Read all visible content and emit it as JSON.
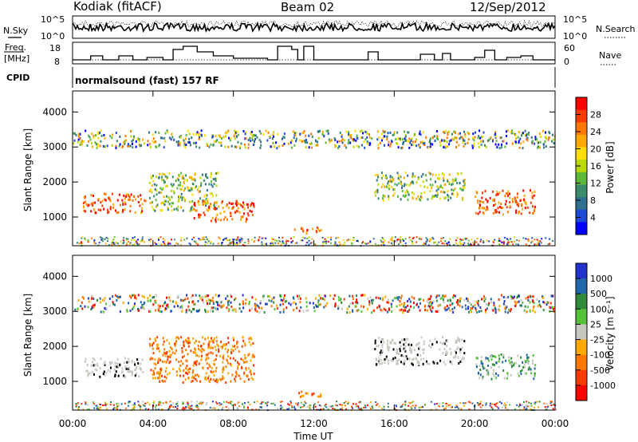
{
  "header": {
    "station": "Kodiak (fitACF)",
    "beam": "Beam 02",
    "date": "12/Sep/2012"
  },
  "noise_panel": {
    "left_label": "N.Sky",
    "right_label": "N.Search",
    "ticks_left": [
      "10^5",
      "10^0"
    ],
    "ticks_right": [
      "10^5",
      "10^0"
    ]
  },
  "freq_panel": {
    "left_label_1": "Freq.",
    "left_label_2": "[MHz]",
    "right_label": "Nave",
    "ticks_left": [
      "18",
      "8"
    ],
    "ticks_right": [
      "60",
      "0"
    ]
  },
  "cpid_panel": {
    "left_label": "CPID",
    "mode": "normalsound (fast) 157 RF"
  },
  "axes": {
    "ylabel": "Slant Range [km]",
    "xlabel": "Time UT",
    "yticks": [
      "4000",
      "3000",
      "2000",
      "1000"
    ],
    "xticks": [
      "00:00",
      "04:00",
      "08:00",
      "12:00",
      "16:00",
      "20:00",
      "00:00"
    ]
  },
  "power_colorbar": {
    "label": "Power [dB]",
    "ticks": [
      "28",
      "24",
      "20",
      "16",
      "12",
      "8",
      "4"
    ],
    "colors": [
      "#ff0000",
      "#ff3a00",
      "#ff7800",
      "#ffaa00",
      "#ffdd00",
      "#b8d800",
      "#5ab83a",
      "#3a8c6a",
      "#2f6f8f",
      "#1e4ad8",
      "#0000ff"
    ]
  },
  "velocity_colorbar": {
    "label": "Velocity [m s⁻¹]",
    "ticks": [
      "1000",
      "500",
      "100",
      "25",
      "-25",
      "-100",
      "-500",
      "-1000"
    ],
    "colors": [
      "#2233cc",
      "#2266aa",
      "#2f8a3a",
      "#55c23a",
      "#c8c8c0",
      "#ffaa00",
      "#ff7a00",
      "#ff3a00",
      "#ff0000"
    ]
  },
  "chart_data": [
    {
      "type": "heatmap",
      "title": "Power",
      "x_range_hours": [
        0,
        24
      ],
      "y_range_km": [
        180,
        4600
      ],
      "colorbar_range_db": [
        0,
        30
      ],
      "scatter_regions": [
        {
          "t_start": 0.5,
          "t_end": 3.6,
          "r_low": 1150,
          "r_high": 1700,
          "level": "high"
        },
        {
          "t_start": 3.8,
          "t_end": 7.2,
          "r_low": 1200,
          "r_high": 2300,
          "level": "medium"
        },
        {
          "t_start": 6.0,
          "t_end": 9.0,
          "r_low": 900,
          "r_high": 1500,
          "level": "high"
        },
        {
          "t_start": 11.0,
          "t_end": 12.4,
          "r_low": 550,
          "r_high": 750,
          "level": "high"
        },
        {
          "t_start": 15.0,
          "t_end": 19.5,
          "r_low": 1500,
          "r_high": 2300,
          "level": "medium"
        },
        {
          "t_start": 20.0,
          "t_end": 23.0,
          "r_low": 1100,
          "r_high": 1800,
          "level": "high"
        },
        {
          "t_start": 0.0,
          "t_end": 24.0,
          "r_low": 3000,
          "r_high": 3500,
          "level": "low"
        }
      ]
    },
    {
      "type": "heatmap",
      "title": "Velocity",
      "x_range_hours": [
        0,
        24
      ],
      "y_range_km": [
        180,
        4600
      ],
      "colorbar_values": [
        1000,
        500,
        100,
        25,
        -25,
        -100,
        -500,
        -1000
      ],
      "scatter_regions": [
        {
          "t_start": 0.5,
          "t_end": 3.6,
          "r_low": 1150,
          "r_high": 1700,
          "level": "near-zero"
        },
        {
          "t_start": 3.8,
          "t_end": 9.0,
          "r_low": 1000,
          "r_high": 2300,
          "level": "negative"
        },
        {
          "t_start": 11.0,
          "t_end": 12.4,
          "r_low": 550,
          "r_high": 750,
          "level": "negative"
        },
        {
          "t_start": 15.0,
          "t_end": 19.5,
          "r_low": 1500,
          "r_high": 2300,
          "level": "near-zero"
        },
        {
          "t_start": 20.0,
          "t_end": 23.0,
          "r_low": 1100,
          "r_high": 1800,
          "level": "positive"
        },
        {
          "t_start": 0.0,
          "t_end": 24.0,
          "r_low": 3000,
          "r_high": 3500,
          "level": "mixed"
        }
      ]
    }
  ]
}
